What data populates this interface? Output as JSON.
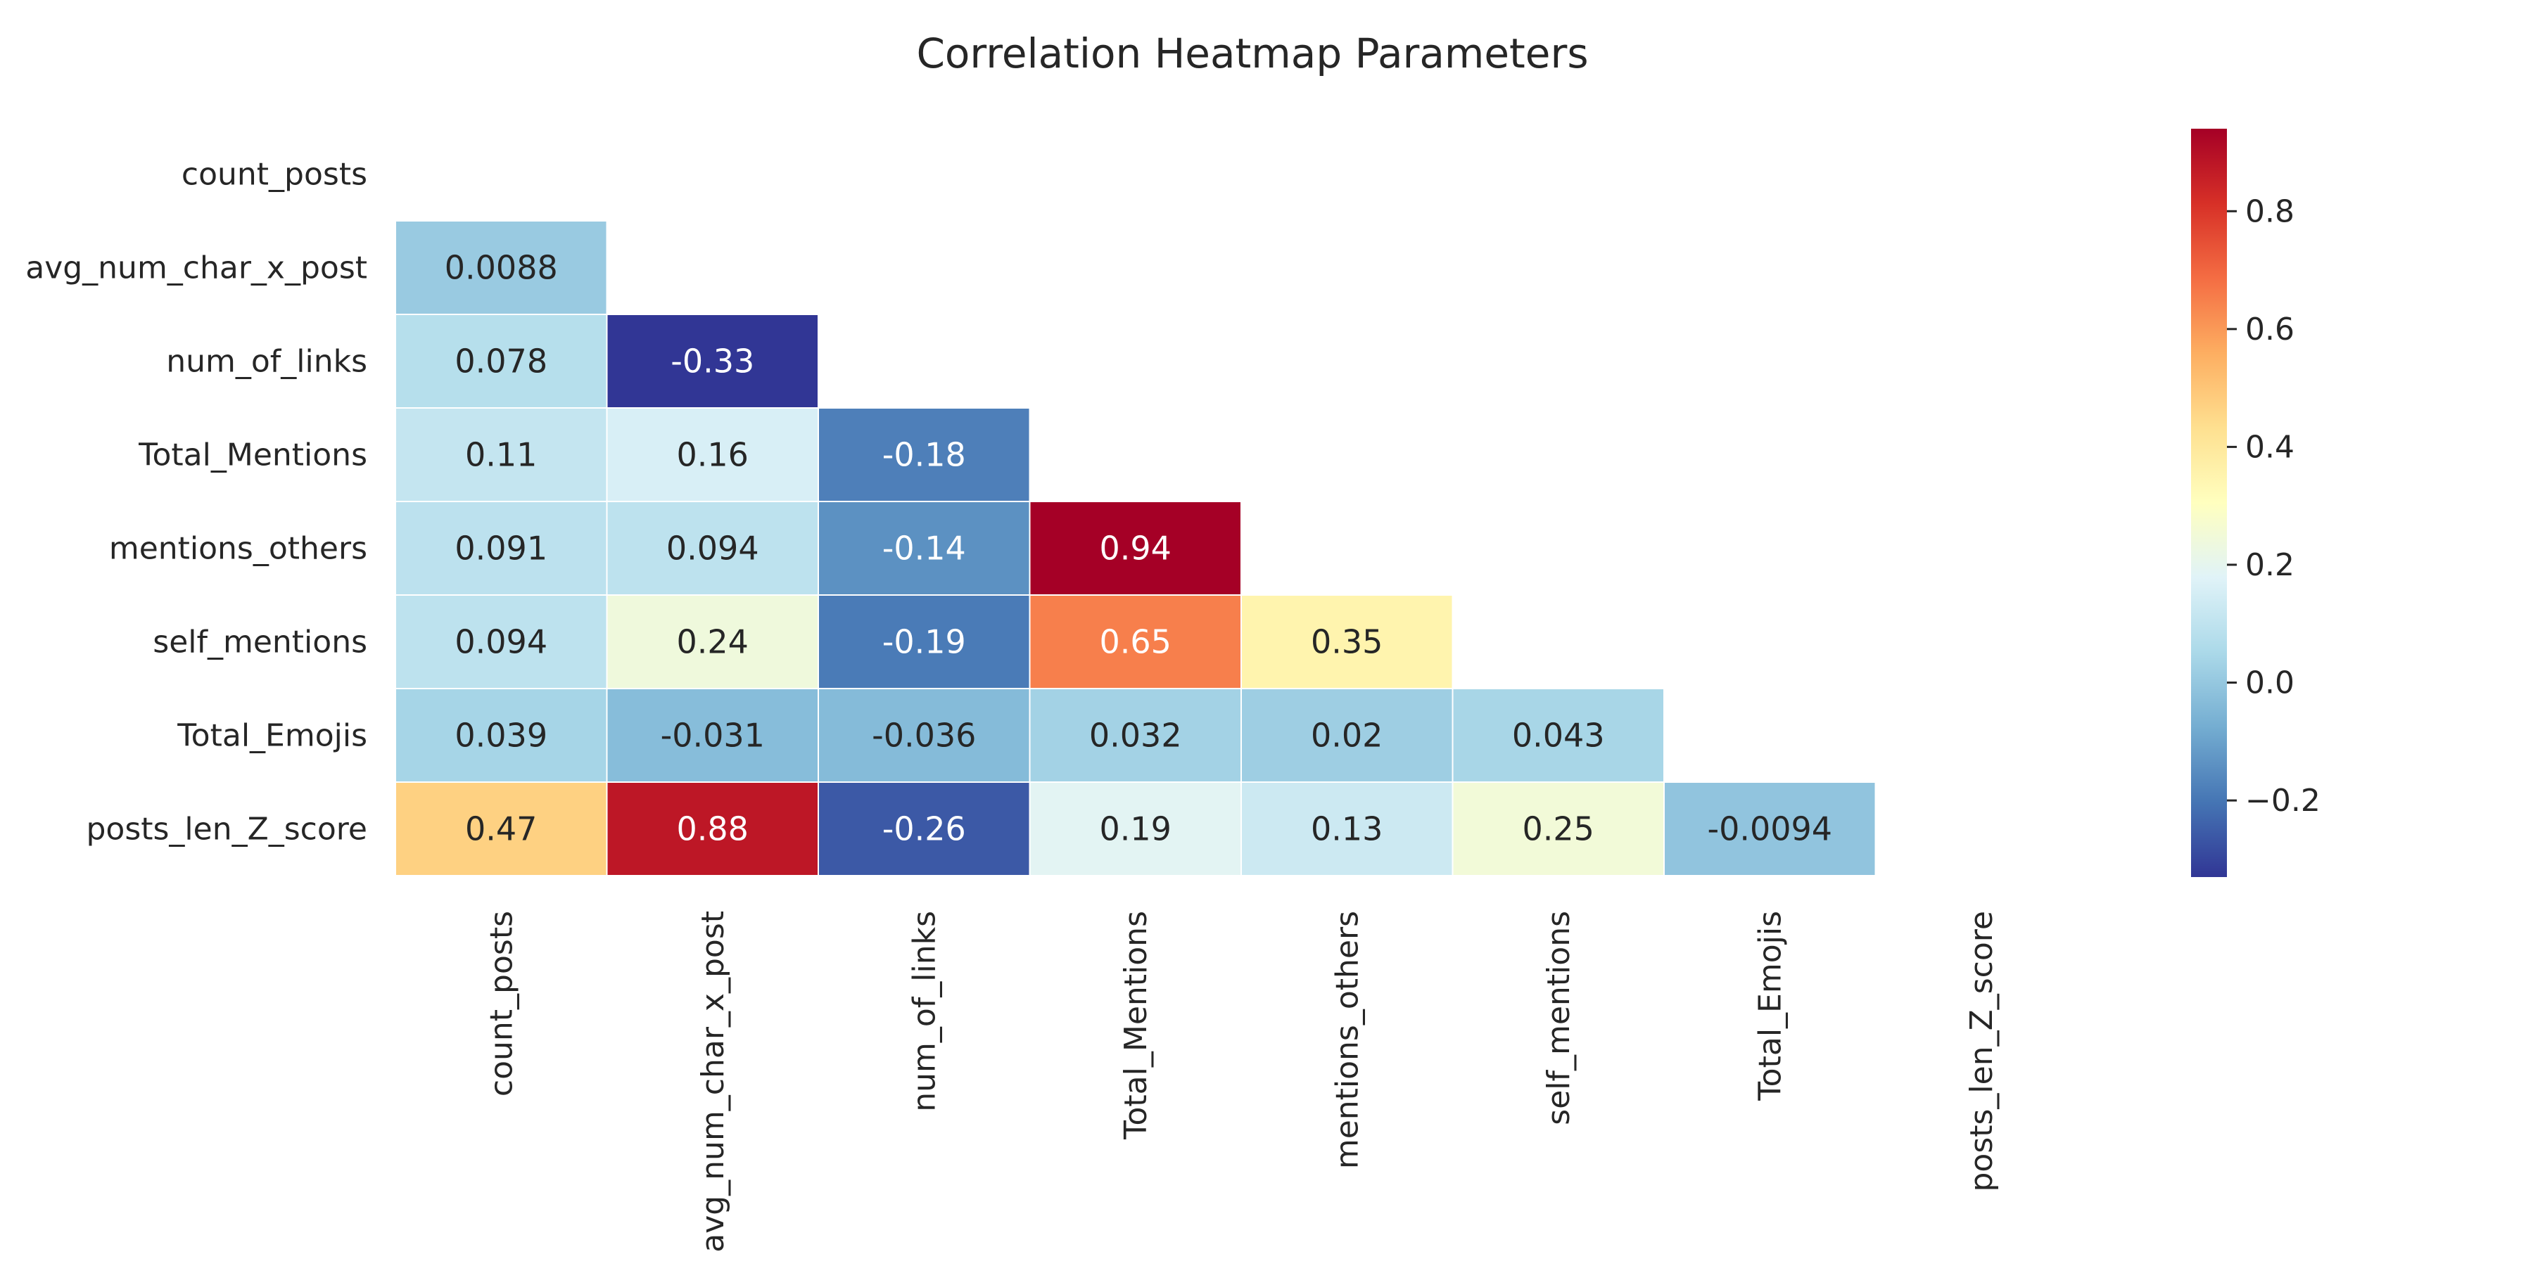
{
  "chart_data": {
    "type": "heatmap",
    "title": "Correlation Heatmap Parameters",
    "xlabel": "",
    "ylabel": "",
    "variables": [
      "count_posts",
      "avg_num_char_x_post",
      "num_of_links",
      "Total_Mentions",
      "mentions_others",
      "self_mentions",
      "Total_Emojis",
      "posts_len_Z_score"
    ],
    "mask": "upper-triangle-including-diagonal",
    "matrix": [
      [
        null,
        null,
        null,
        null,
        null,
        null,
        null,
        null
      ],
      [
        "0.0088",
        null,
        null,
        null,
        null,
        null,
        null,
        null
      ],
      [
        "0.078",
        "-0.33",
        null,
        null,
        null,
        null,
        null,
        null
      ],
      [
        "0.11",
        "0.16",
        "-0.18",
        null,
        null,
        null,
        null,
        null
      ],
      [
        "0.091",
        "0.094",
        "-0.14",
        "0.94",
        null,
        null,
        null,
        null
      ],
      [
        "0.094",
        "0.24",
        "-0.19",
        "0.65",
        "0.35",
        null,
        null,
        null
      ],
      [
        "0.039",
        "-0.031",
        "-0.036",
        "0.032",
        "0.02",
        "0.043",
        null,
        null
      ],
      [
        "0.47",
        "0.88",
        "-0.26",
        "0.19",
        "0.13",
        "0.25",
        "-0.0094",
        null
      ]
    ],
    "colormap": "RdYlBu_r",
    "vmin": -0.33,
    "vmax": 0.94,
    "colorbar": {
      "position": "right",
      "ticks": [
        "−0.2",
        "0.0",
        "0.2",
        "0.4",
        "0.6",
        "0.8"
      ]
    },
    "grid": false,
    "cell_border_color": "#ffffff",
    "annotations": true
  }
}
